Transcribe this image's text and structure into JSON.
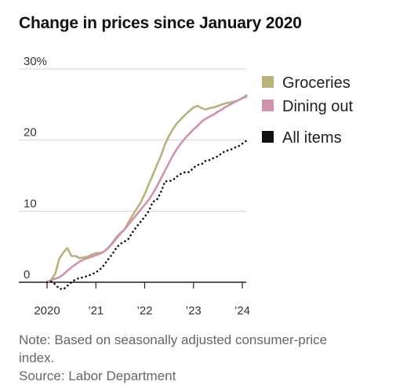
{
  "title": "Change in prices since January 2020",
  "note": "Note: Based on seasonally adjusted consumer-price index.",
  "source": "Source: Labor Department",
  "colors": {
    "groceries": "#b7b37a",
    "dining": "#d291ad",
    "all_items": "#111111",
    "grid": "#d7d7d7",
    "baseline": "#222222"
  },
  "chart_data": {
    "type": "line",
    "title": "Change in prices since January 2020",
    "xlabel": "",
    "ylabel": "",
    "ylim": [
      0,
      30
    ],
    "yticks": [
      0,
      10,
      20,
      30
    ],
    "ytick_labels": [
      "0",
      "10",
      "20",
      "30%"
    ],
    "xlim": [
      "2020-01",
      "2024-02"
    ],
    "xticks": [
      "2020-01",
      "2021-01",
      "2022-01",
      "2023-01",
      "2024-01"
    ],
    "xtick_labels": [
      "2020",
      "’21",
      "’22",
      "’23",
      "’24"
    ],
    "grid": true,
    "legend_position": "top-right",
    "series": [
      {
        "name": "Groceries",
        "style": "solid",
        "points": [
          [
            "2020-01",
            0.0
          ],
          [
            "2020-02",
            0.3
          ],
          [
            "2020-03",
            1.2
          ],
          [
            "2020-04",
            3.3
          ],
          [
            "2020-05",
            4.2
          ],
          [
            "2020-06",
            4.8
          ],
          [
            "2020-07",
            3.7
          ],
          [
            "2020-08",
            3.7
          ],
          [
            "2020-09",
            3.4
          ],
          [
            "2020-10",
            3.5
          ],
          [
            "2020-11",
            3.6
          ],
          [
            "2020-12",
            3.9
          ],
          [
            "2021-01",
            4.1
          ],
          [
            "2021-02",
            4.1
          ],
          [
            "2021-03",
            4.3
          ],
          [
            "2021-04",
            4.8
          ],
          [
            "2021-05",
            5.5
          ],
          [
            "2021-06",
            6.3
          ],
          [
            "2021-07",
            6.9
          ],
          [
            "2021-08",
            7.4
          ],
          [
            "2021-09",
            8.4
          ],
          [
            "2021-10",
            9.4
          ],
          [
            "2021-11",
            10.3
          ],
          [
            "2021-12",
            11.2
          ],
          [
            "2022-01",
            12.4
          ],
          [
            "2022-02",
            13.8
          ],
          [
            "2022-03",
            15.1
          ],
          [
            "2022-04",
            16.5
          ],
          [
            "2022-05",
            17.8
          ],
          [
            "2022-06",
            19.4
          ],
          [
            "2022-07",
            20.6
          ],
          [
            "2022-08",
            21.6
          ],
          [
            "2022-09",
            22.4
          ],
          [
            "2022-10",
            23.0
          ],
          [
            "2022-11",
            23.6
          ],
          [
            "2022-12",
            24.1
          ],
          [
            "2023-01",
            24.6
          ],
          [
            "2023-02",
            24.8
          ],
          [
            "2023-03",
            24.5
          ],
          [
            "2023-04",
            24.3
          ],
          [
            "2023-05",
            24.5
          ],
          [
            "2023-06",
            24.6
          ],
          [
            "2023-07",
            24.8
          ],
          [
            "2023-08",
            25.0
          ],
          [
            "2023-09",
            25.2
          ],
          [
            "2023-10",
            25.3
          ],
          [
            "2023-11",
            25.4
          ],
          [
            "2023-12",
            25.6
          ],
          [
            "2024-01",
            25.9
          ],
          [
            "2024-02",
            26.3
          ]
        ]
      },
      {
        "name": "Dining out",
        "style": "solid",
        "points": [
          [
            "2020-01",
            0.0
          ],
          [
            "2020-02",
            0.3
          ],
          [
            "2020-03",
            0.5
          ],
          [
            "2020-04",
            0.7
          ],
          [
            "2020-05",
            1.1
          ],
          [
            "2020-06",
            1.6
          ],
          [
            "2020-07",
            2.1
          ],
          [
            "2020-08",
            2.5
          ],
          [
            "2020-09",
            2.9
          ],
          [
            "2020-10",
            3.2
          ],
          [
            "2020-11",
            3.4
          ],
          [
            "2020-12",
            3.6
          ],
          [
            "2021-01",
            3.8
          ],
          [
            "2021-02",
            4.0
          ],
          [
            "2021-03",
            4.3
          ],
          [
            "2021-04",
            4.8
          ],
          [
            "2021-05",
            5.4
          ],
          [
            "2021-06",
            6.1
          ],
          [
            "2021-07",
            6.8
          ],
          [
            "2021-08",
            7.4
          ],
          [
            "2021-09",
            8.1
          ],
          [
            "2021-10",
            8.8
          ],
          [
            "2021-11",
            9.5
          ],
          [
            "2021-12",
            10.2
          ],
          [
            "2022-01",
            10.9
          ],
          [
            "2022-02",
            11.6
          ],
          [
            "2022-03",
            12.5
          ],
          [
            "2022-04",
            13.5
          ],
          [
            "2022-05",
            14.6
          ],
          [
            "2022-06",
            15.7
          ],
          [
            "2022-07",
            16.8
          ],
          [
            "2022-08",
            17.9
          ],
          [
            "2022-09",
            18.8
          ],
          [
            "2022-10",
            19.6
          ],
          [
            "2022-11",
            20.3
          ],
          [
            "2022-12",
            20.9
          ],
          [
            "2023-01",
            21.5
          ],
          [
            "2023-02",
            22.0
          ],
          [
            "2023-03",
            22.6
          ],
          [
            "2023-04",
            23.0
          ],
          [
            "2023-05",
            23.3
          ],
          [
            "2023-06",
            23.6
          ],
          [
            "2023-07",
            24.0
          ],
          [
            "2023-08",
            24.3
          ],
          [
            "2023-09",
            24.7
          ],
          [
            "2023-10",
            25.0
          ],
          [
            "2023-11",
            25.3
          ],
          [
            "2023-12",
            25.6
          ],
          [
            "2024-01",
            25.9
          ],
          [
            "2024-02",
            26.1
          ]
        ]
      },
      {
        "name": "All items",
        "style": "dotted",
        "points": [
          [
            "2020-01",
            0.0
          ],
          [
            "2020-02",
            0.1
          ],
          [
            "2020-03",
            -0.3
          ],
          [
            "2020-04",
            -0.9
          ],
          [
            "2020-05",
            -1.0
          ],
          [
            "2020-06",
            -0.5
          ],
          [
            "2020-07",
            0.0
          ],
          [
            "2020-08",
            0.4
          ],
          [
            "2020-09",
            0.6
          ],
          [
            "2020-10",
            0.7
          ],
          [
            "2020-11",
            0.9
          ],
          [
            "2020-12",
            1.1
          ],
          [
            "2021-01",
            1.4
          ],
          [
            "2021-02",
            1.8
          ],
          [
            "2021-03",
            2.4
          ],
          [
            "2021-04",
            3.2
          ],
          [
            "2021-05",
            3.9
          ],
          [
            "2021-06",
            4.8
          ],
          [
            "2021-07",
            5.4
          ],
          [
            "2021-08",
            5.7
          ],
          [
            "2021-09",
            6.1
          ],
          [
            "2021-10",
            7.0
          ],
          [
            "2021-11",
            7.8
          ],
          [
            "2021-12",
            8.5
          ],
          [
            "2022-01",
            9.2
          ],
          [
            "2022-02",
            10.0
          ],
          [
            "2022-03",
            11.3
          ],
          [
            "2022-04",
            11.6
          ],
          [
            "2022-05",
            12.7
          ],
          [
            "2022-06",
            14.2
          ],
          [
            "2022-07",
            14.2
          ],
          [
            "2022-08",
            14.4
          ],
          [
            "2022-09",
            14.9
          ],
          [
            "2022-10",
            15.3
          ],
          [
            "2022-11",
            15.5
          ],
          [
            "2022-12",
            15.5
          ],
          [
            "2023-01",
            16.1
          ],
          [
            "2023-02",
            16.5
          ],
          [
            "2023-03",
            16.6
          ],
          [
            "2023-04",
            17.1
          ],
          [
            "2023-05",
            17.2
          ],
          [
            "2023-06",
            17.5
          ],
          [
            "2023-07",
            17.7
          ],
          [
            "2023-08",
            18.2
          ],
          [
            "2023-09",
            18.5
          ],
          [
            "2023-10",
            18.6
          ],
          [
            "2023-11",
            18.9
          ],
          [
            "2023-12",
            19.1
          ],
          [
            "2024-01",
            19.5
          ],
          [
            "2024-02",
            19.9
          ]
        ]
      }
    ]
  }
}
